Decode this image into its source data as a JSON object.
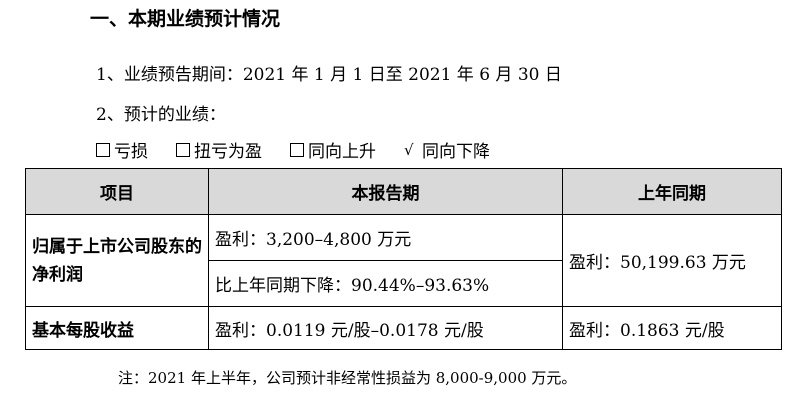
{
  "section_title": "一、本期业绩预计情况",
  "period_line": "1、业绩预告期间：2021 年 1 月 1 日至 2021 年 6 月 30 日",
  "forecast_label": "2、预计的业绩：",
  "options": [
    {
      "label": "亏损",
      "checked": false
    },
    {
      "label": "扭亏为盈",
      "checked": false
    },
    {
      "label": "同向上升",
      "checked": false
    },
    {
      "label": "同向下降",
      "checked": true
    }
  ],
  "check_mark": "√",
  "table": {
    "headers": [
      "项目",
      "本报告期",
      "上年同期"
    ],
    "rows": {
      "net_profit_label": "归属于上市公司股东的净利润",
      "net_profit_current": "盈利：3,200–4,800 万元",
      "net_profit_change": "比上年同期下降：90.44%–93.63%",
      "net_profit_prior": "盈利：50,199.63 万元",
      "eps_label": "基本每股收益",
      "eps_current": "盈利：0.0119 元/股–0.0178 元/股",
      "eps_prior": "盈利：0.1863 元/股"
    }
  },
  "note": "注：2021 年上半年，公司预计非经常性损益为 8,000-9,000 万元。"
}
